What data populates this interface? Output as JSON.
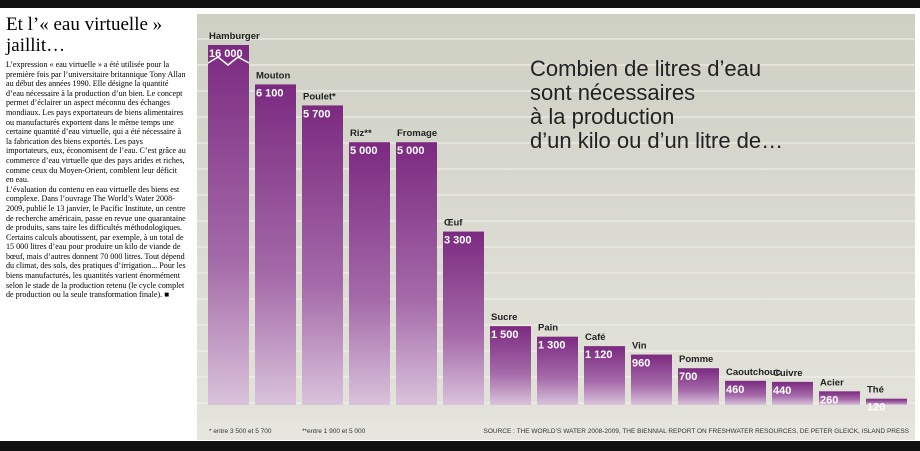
{
  "article": {
    "title": "Et l’« eau virtuelle » jaillit…",
    "paragraphs": [
      "L’expression « eau virtuelle » a été utilisée pour la première fois par l’universitaire britannique Tony Allan au début des années 1990. Elle désigne la quantité d’eau nécessaire à la production d’un bien. Le concept permet d’éclairer un aspect méconnu des échanges mondiaux. Les pays exportateurs de biens alimentaires ou manufacturés exportent dans le même temps une certaine quantité d’eau virtuelle, qui a été nécessaire à la fabrication des biens exportés. Les pays importateurs, eux, économisent de l’eau. C’est grâce au commerce d’eau virtuelle que des pays arides et riches, comme ceux du Moyen-Orient, comblent leur déficit en eau.",
      "L’évaluation du contenu en eau virtuelle des biens est complexe. Dans l’ouvrage The World’s Water 2008-2009, publié le 13 janvier, le Pacific Institute, un centre de recherche américain, passe en revue une quarantaine de produits, sans taire les difficultés méthodologiques. Certains calculs aboutissent, par exemple, à un total de 15 000 litres d’eau pour produire un kilo de viande de bœuf, mais d’autres donnent 70 000 litres. Tout dépend du climat, des sols, des pratiques d’irrigation... Pour les biens manufacturés, les quantités varient énormément selon le stade de la production retenu (le cycle complet de production ou la seule transformation finale). ■"
    ]
  },
  "chart_data": {
    "type": "bar",
    "title": [
      "Combien de litres d’eau",
      "sont nécessaires",
      "à la production",
      "d’un kilo ou d’un litre de…"
    ],
    "categories": [
      "Hamburger",
      "Mouton",
      "Poulet*",
      "Riz**",
      "Fromage",
      "Œuf",
      "Sucre",
      "Pain",
      "Café",
      "Vin",
      "Pomme",
      "Caoutchouc",
      "Cuivre",
      "Acier",
      "Thé"
    ],
    "values": [
      16000,
      6100,
      5700,
      5000,
      5000,
      3300,
      1500,
      1300,
      1120,
      960,
      700,
      460,
      440,
      260,
      120
    ],
    "value_labels": [
      "16 000",
      "6 100",
      "5 700",
      "5 000",
      "5 000",
      "3 300",
      "1 500",
      "1 300",
      "1 120",
      "960",
      "700",
      "460",
      "440",
      "260",
      "120"
    ],
    "color": "#7b2a80",
    "ylim": [
      0,
      6850
    ],
    "notes": [
      "* entre 3 500 et 5 700",
      "**entre 1 900 et 5 000"
    ],
    "source": "SOURCE : THE WORLD’S WATER 2008-2009, THE BIENNIAL REPORT ON FRESHWATER RESOURCES, DE PETER GLEICK, ISLAND PRESS"
  }
}
